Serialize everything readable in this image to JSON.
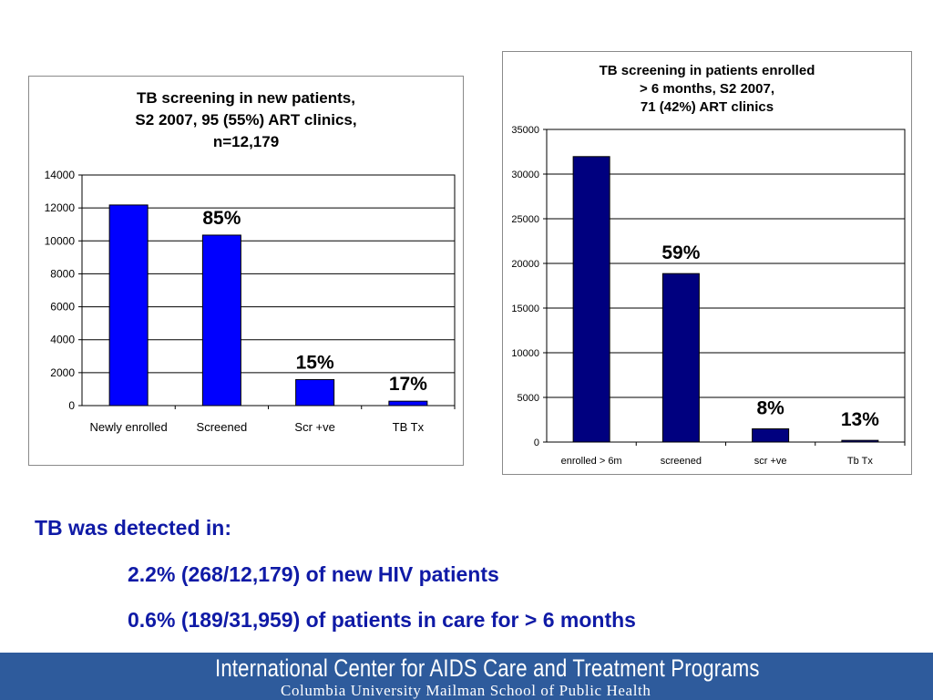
{
  "chart_data": [
    {
      "type": "bar",
      "title_lines": [
        "TB screening in new patients,",
        "S2 2007, 95 (55%) ART clinics,",
        "n=12,179"
      ],
      "categories": [
        "Newly enrolled",
        "Screened",
        "Scr +ve",
        "TB Tx"
      ],
      "values": [
        12179,
        10350,
        1580,
        268
      ],
      "data_labels": [
        "",
        "85%",
        "15%",
        "17%"
      ],
      "ylim": [
        0,
        14000
      ],
      "yticks": [
        0,
        2000,
        4000,
        6000,
        8000,
        10000,
        12000,
        14000
      ],
      "grid": true,
      "bar_color": "#0000ff"
    },
    {
      "type": "bar",
      "title_lines": [
        "TB screening in patients enrolled",
        "> 6 months, S2 2007,",
        "71 (42%) ART clinics"
      ],
      "categories": [
        "enrolled > 6m",
        "screened",
        "scr +ve",
        "Tb Tx"
      ],
      "values": [
        31959,
        18860,
        1480,
        189
      ],
      "data_labels": [
        "",
        "59%",
        "8%",
        "13%"
      ],
      "ylim": [
        0,
        35000
      ],
      "yticks": [
        0,
        5000,
        10000,
        15000,
        20000,
        25000,
        30000,
        35000
      ],
      "grid": true,
      "bar_color": "#00007f"
    }
  ],
  "summary": {
    "heading": "TB was detected in:",
    "lines": [
      "2.2% (268/12,179) of new HIV patients",
      "0.6% (189/31,959) of patients in care for > 6 months"
    ]
  },
  "footer": {
    "organization": "International Center for AIDS Care and Treatment Programs",
    "school": "Columbia University Mailman School of Public Health",
    "background": "#2e5b9c"
  }
}
